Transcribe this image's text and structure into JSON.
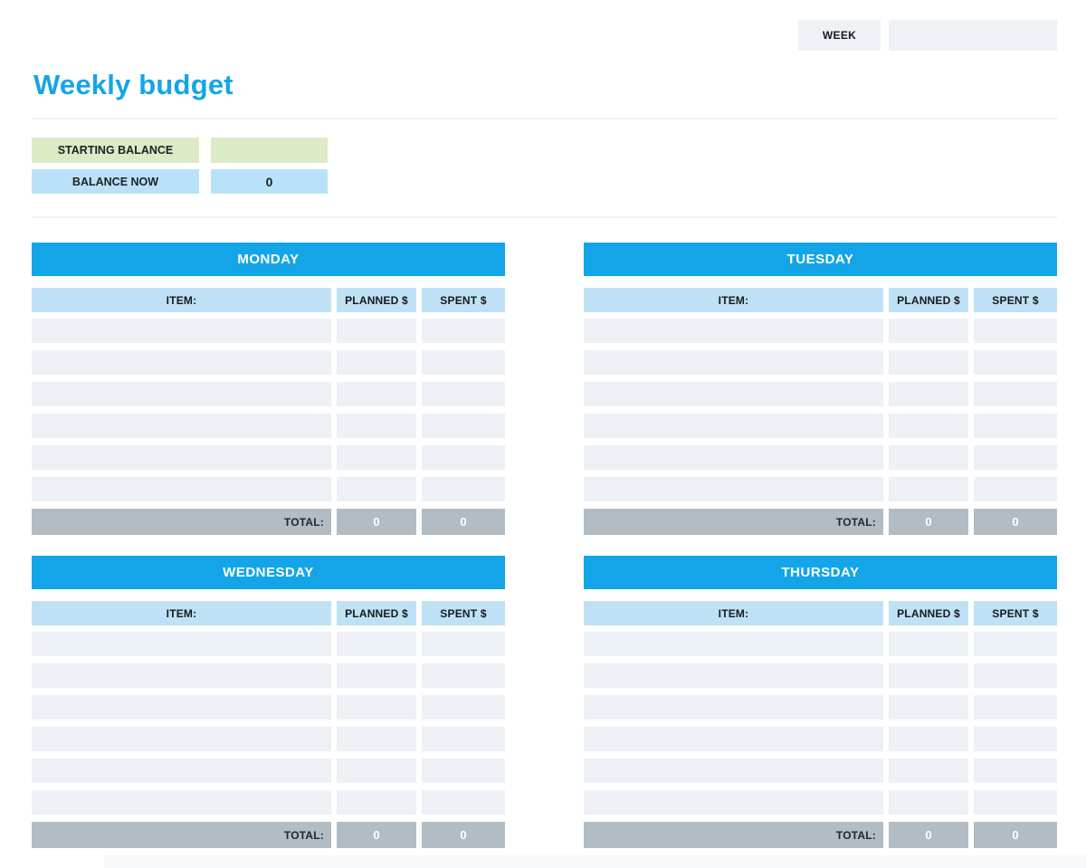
{
  "header": {
    "week_label": "WEEK",
    "week_value": ""
  },
  "title": "Weekly budget",
  "balance": {
    "starting_label": "STARTING BALANCE",
    "starting_value": "",
    "now_label": "BALANCE NOW",
    "now_value": "0"
  },
  "table_labels": {
    "item": "ITEM:",
    "planned": "PLANNED $",
    "spent": "SPENT $",
    "total": "TOTAL:"
  },
  "days": [
    {
      "name": "MONDAY",
      "row_count": 6,
      "total_planned": "0",
      "total_spent": "0"
    },
    {
      "name": "TUESDAY",
      "row_count": 6,
      "total_planned": "0",
      "total_spent": "0"
    },
    {
      "name": "WEDNESDAY",
      "row_count": 6,
      "total_planned": "0",
      "total_spent": "0"
    },
    {
      "name": "THURSDAY",
      "row_count": 6,
      "total_planned": "0",
      "total_spent": "0"
    }
  ],
  "colors": {
    "accent_blue": "#14a5e8",
    "light_blue_header": "#bfe1f5",
    "balance_blue": "#b9e2f8",
    "balance_green": "#dcebc6",
    "row_gray": "#edf1f5",
    "total_gray": "#b2bcc4",
    "week_box_gray": "#eef2f6"
  }
}
